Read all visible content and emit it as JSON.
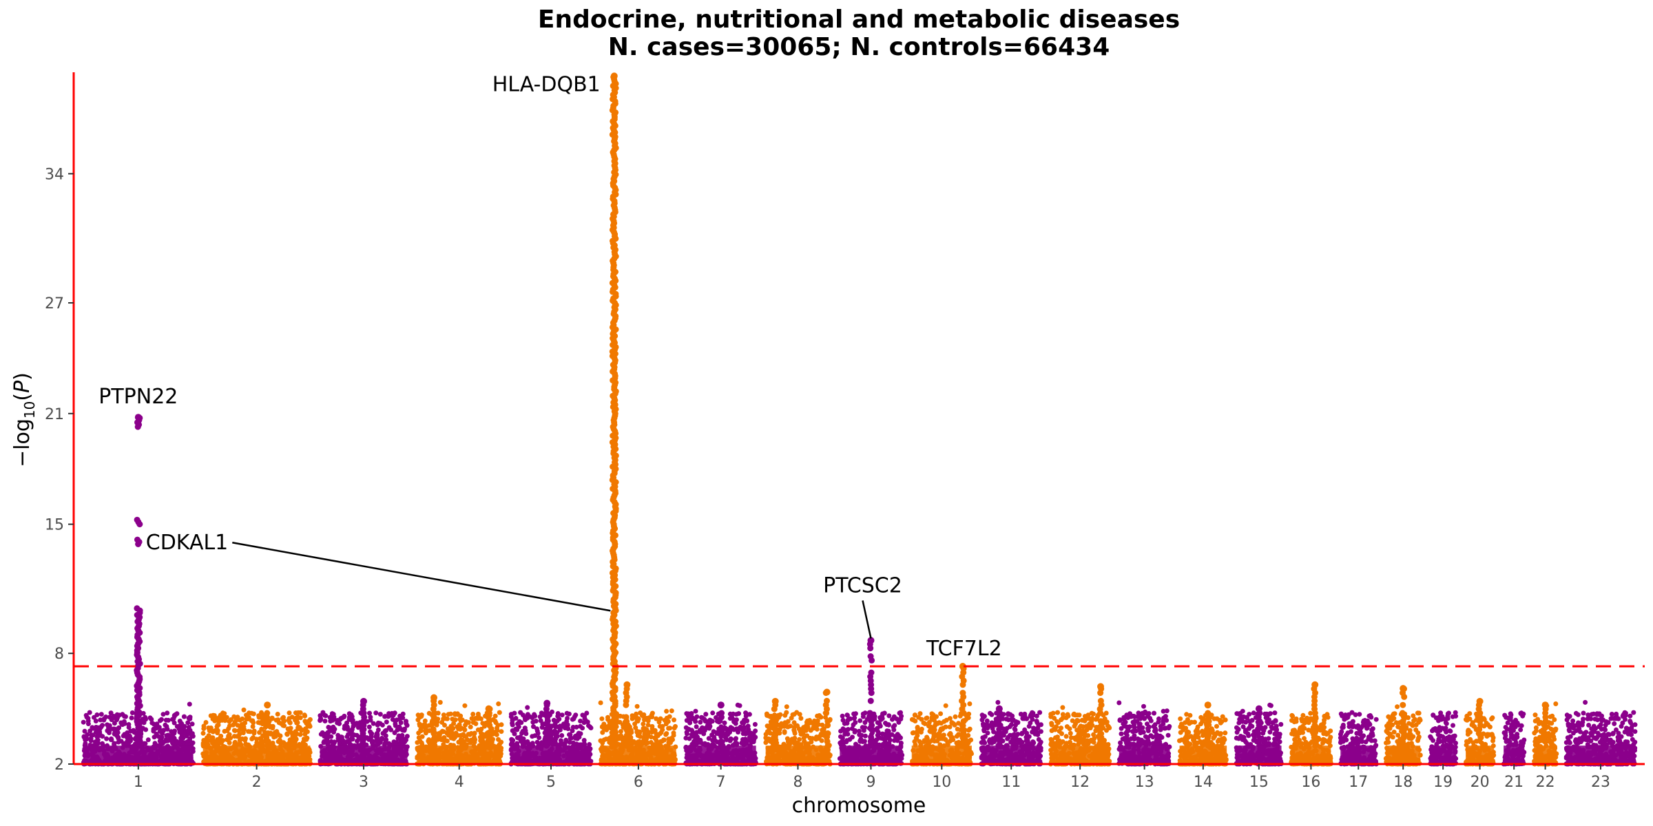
{
  "chart_data": {
    "type": "scatter",
    "subtype": "manhattan",
    "title_line1": "Endocrine, nutritional and metabolic diseases",
    "title_line2": "N. cases=30065; N. controls=66434",
    "xlabel": "chromosome",
    "ylabel": "−log10(P)",
    "ylim": [
      2,
      39.5
    ],
    "yticks": [
      2,
      8,
      15,
      21,
      27,
      34
    ],
    "significance_threshold": 7.3,
    "colors": {
      "odd_chromosome": "#8B008B",
      "even_chromosome": "#F07800",
      "axis_line": "#FF0000",
      "threshold_line": "#FF0000"
    },
    "chromosomes": [
      {
        "label": "1",
        "relative_length": 249
      },
      {
        "label": "2",
        "relative_length": 243
      },
      {
        "label": "3",
        "relative_length": 198
      },
      {
        "label": "4",
        "relative_length": 191
      },
      {
        "label": "5",
        "relative_length": 181
      },
      {
        "label": "6",
        "relative_length": 171
      },
      {
        "label": "7",
        "relative_length": 159
      },
      {
        "label": "8",
        "relative_length": 146
      },
      {
        "label": "9",
        "relative_length": 141
      },
      {
        "label": "10",
        "relative_length": 136
      },
      {
        "label": "11",
        "relative_length": 135
      },
      {
        "label": "12",
        "relative_length": 133
      },
      {
        "label": "13",
        "relative_length": 115
      },
      {
        "label": "14",
        "relative_length": 107
      },
      {
        "label": "15",
        "relative_length": 102
      },
      {
        "label": "16",
        "relative_length": 90
      },
      {
        "label": "17",
        "relative_length": 81
      },
      {
        "label": "18",
        "relative_length": 78
      },
      {
        "label": "19",
        "relative_length": 59
      },
      {
        "label": "20",
        "relative_length": 64
      },
      {
        "label": "21",
        "relative_length": 47
      },
      {
        "label": "22",
        "relative_length": 51
      },
      {
        "label": "23",
        "relative_length": 156
      }
    ],
    "peaks": [
      {
        "chr": "1",
        "pos": 0.5,
        "max": 20.8
      },
      {
        "chr": "2",
        "pos": 0.6,
        "max": 5.2
      },
      {
        "chr": "3",
        "pos": 0.5,
        "max": 5.4
      },
      {
        "chr": "4",
        "pos": 0.2,
        "max": 5.6
      },
      {
        "chr": "4",
        "pos": 0.85,
        "max": 5.0
      },
      {
        "chr": "5",
        "pos": 0.45,
        "max": 5.3
      },
      {
        "chr": "6",
        "pos": 0.18,
        "max": 39.3
      },
      {
        "chr": "6",
        "pos": 0.35,
        "max": 6.3
      },
      {
        "chr": "7",
        "pos": 0.5,
        "max": 5.2
      },
      {
        "chr": "8",
        "pos": 0.15,
        "max": 5.4
      },
      {
        "chr": "8",
        "pos": 0.95,
        "max": 5.9
      },
      {
        "chr": "9",
        "pos": 0.5,
        "max": 8.7
      },
      {
        "chr": "10",
        "pos": 0.85,
        "max": 7.3
      },
      {
        "chr": "11",
        "pos": 0.3,
        "max": 5.0
      },
      {
        "chr": "12",
        "pos": 0.85,
        "max": 6.2
      },
      {
        "chr": "14",
        "pos": 0.6,
        "max": 5.2
      },
      {
        "chr": "15",
        "pos": 0.5,
        "max": 5.0
      },
      {
        "chr": "16",
        "pos": 0.6,
        "max": 6.3
      },
      {
        "chr": "18",
        "pos": 0.5,
        "max": 6.1
      },
      {
        "chr": "20",
        "pos": 0.5,
        "max": 5.4
      },
      {
        "chr": "22",
        "pos": 0.5,
        "max": 5.2
      }
    ],
    "annotations": [
      {
        "gene": "PTPN22",
        "chr": "1",
        "pos": 0.5,
        "y": 20.8
      },
      {
        "gene": "HLA-DQB1",
        "chr": "6",
        "pos": 0.18,
        "y": 39.3
      },
      {
        "gene": "CDKAL1",
        "chr": "6",
        "pos": 0.13,
        "y": 10.2
      },
      {
        "gene": "PTCSC2",
        "chr": "9",
        "pos": 0.5,
        "y": 8.7
      },
      {
        "gene": "TCF7L2",
        "chr": "10",
        "pos": 0.85,
        "y": 7.3
      }
    ]
  }
}
